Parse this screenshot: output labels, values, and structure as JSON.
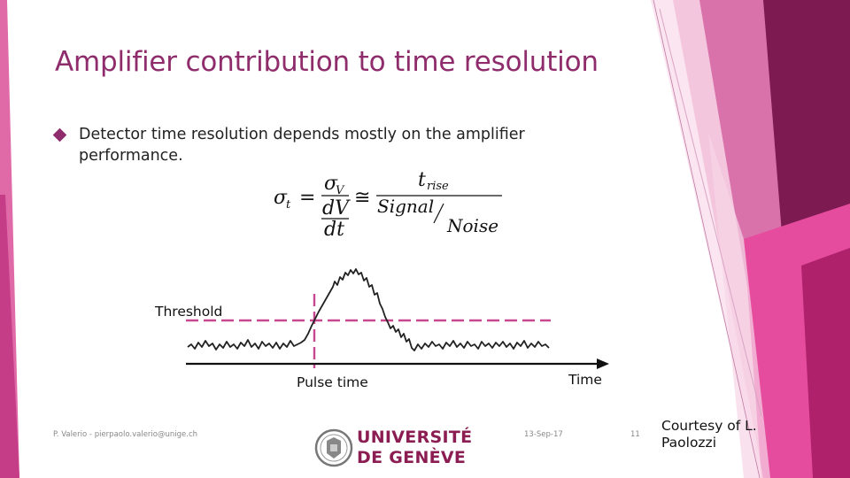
{
  "slide": {
    "title": "Amplifier contribution to time resolution",
    "bullet": "Detector time resolution depends mostly on the amplifier performance."
  },
  "formula": {
    "lhs": "σt = σV / (dV/dt) ≅ trise / (Signal/Noise)"
  },
  "figure": {
    "threshold_label": "Threshold",
    "pulse_time_label": "Pulse time",
    "time_axis_label": "Time"
  },
  "footer": {
    "author": "P. Valerio - pierpaolo.valerio@unige.ch",
    "date": "13-Sep-17",
    "page": "11",
    "courtesy": "Courtesy of L. Paolozzi"
  },
  "logo": {
    "line1": "UNIVERSITÉ",
    "line2": "DE GENÈVE"
  },
  "colors": {
    "title": "#8e2c6c",
    "accent_magenta": "#e8509f",
    "threshold_dash": "#c8488f",
    "dark_plum": "#7a1a4f"
  }
}
